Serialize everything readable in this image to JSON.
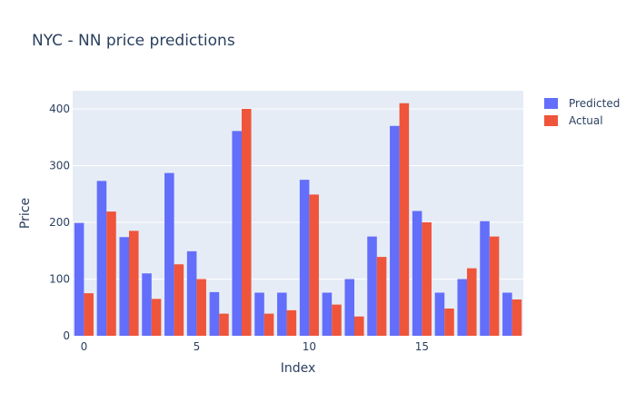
{
  "chart_data": {
    "type": "bar",
    "title": "NYC - NN price predictions",
    "xlabel": "Index",
    "ylabel": "Price",
    "x": [
      0,
      1,
      2,
      3,
      4,
      5,
      6,
      7,
      8,
      9,
      10,
      11,
      12,
      13,
      14,
      15,
      16,
      17,
      18,
      19
    ],
    "xticks": [
      0,
      5,
      10,
      15
    ],
    "xtick_labels": [
      "0",
      "5",
      "10",
      "15"
    ],
    "ylim": [
      0,
      432
    ],
    "yticks": [
      0,
      100,
      200,
      300,
      400
    ],
    "ytick_labels": [
      "0",
      "100",
      "200",
      "300",
      "400"
    ],
    "grid": true,
    "legend_position": "top-right",
    "series": [
      {
        "name": "Predicted",
        "color": "#636efa",
        "values": [
          199,
          273,
          174,
          110,
          287,
          149,
          77,
          361,
          76,
          76,
          275,
          76,
          100,
          175,
          370,
          220,
          76,
          100,
          202,
          76
        ]
      },
      {
        "name": "Actual",
        "color": "#ef553b",
        "values": [
          75,
          219,
          185,
          65,
          126,
          100,
          39,
          400,
          39,
          45,
          249,
          55,
          34,
          139,
          410,
          200,
          48,
          119,
          175,
          64
        ]
      }
    ]
  }
}
